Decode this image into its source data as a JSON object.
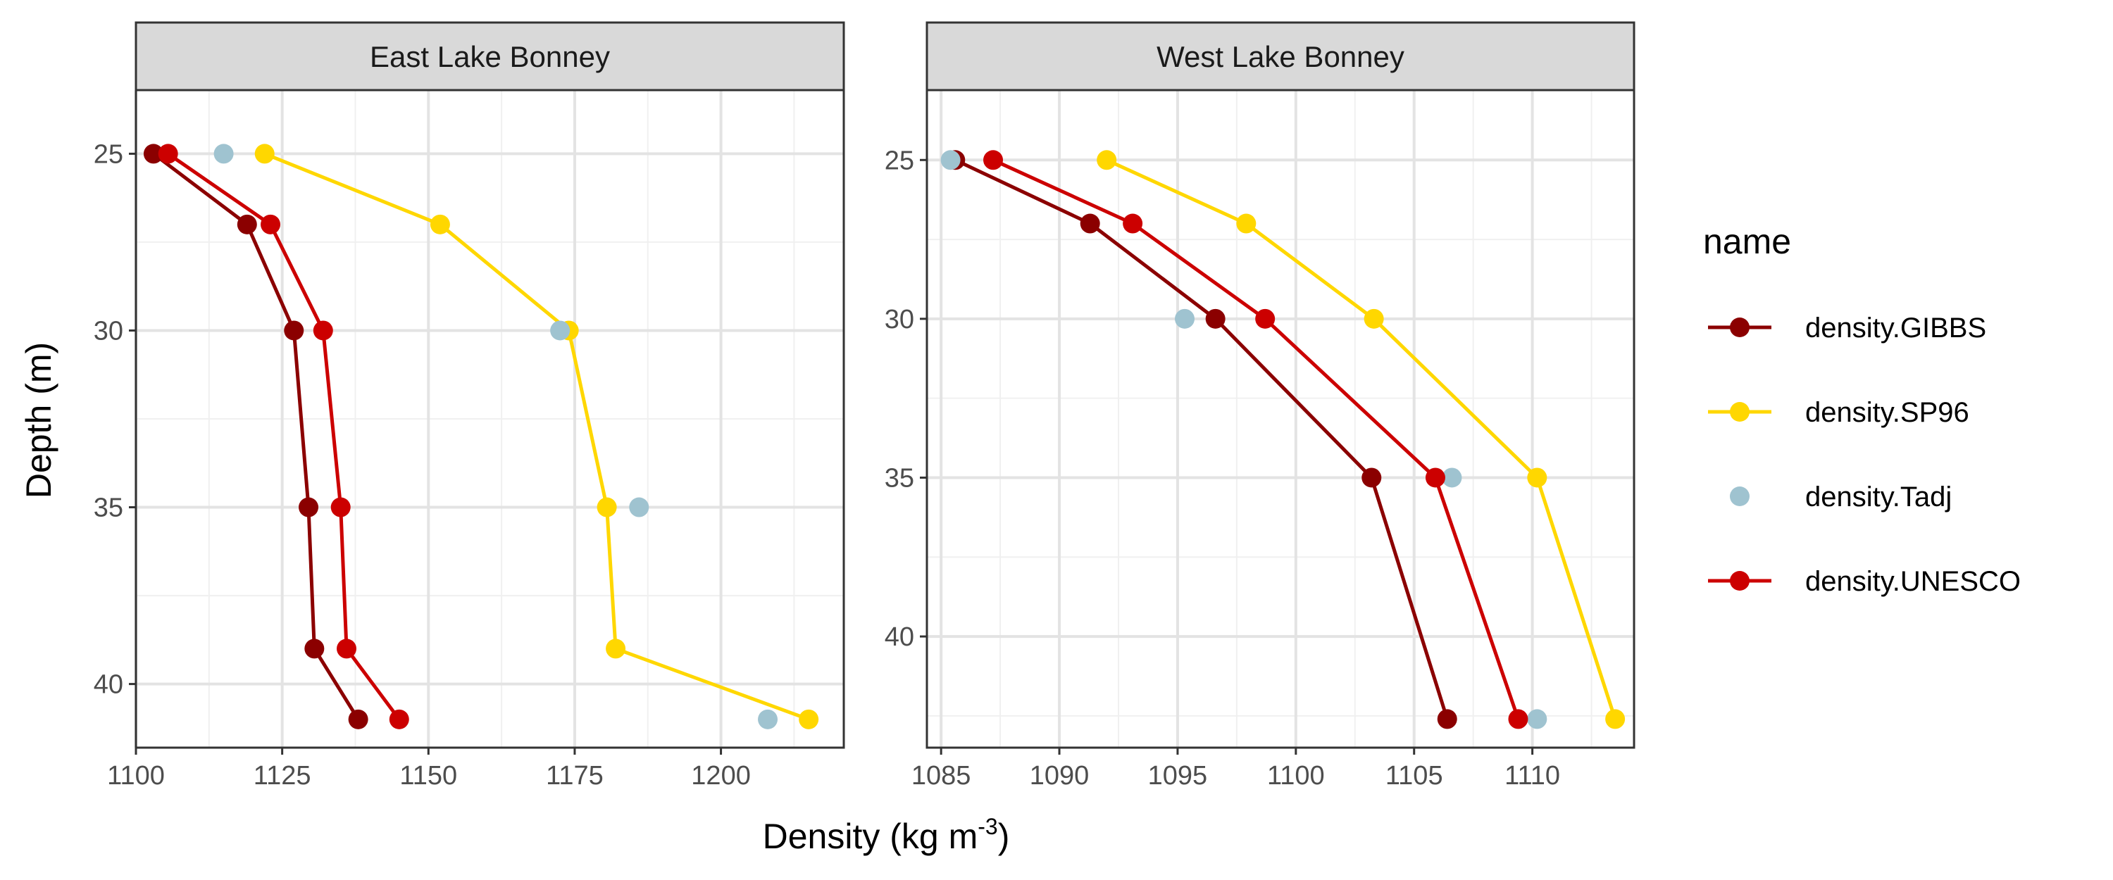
{
  "chart_data": {
    "type": "line",
    "xlabel": "Density (kg m",
    "xlabel_sup": "-3",
    "xlabel_end": ")",
    "ylabel": "Depth (m)",
    "y_reversed": true,
    "grid": true,
    "legend": {
      "title": "name",
      "position": "right",
      "entries": [
        {
          "name": "density.GIBBS",
          "color": "#8B0000",
          "line": true
        },
        {
          "name": "density.SP96",
          "color": "#FFD700",
          "line": true
        },
        {
          "name": "density.Tadj",
          "color": "#9FC3D0",
          "line": false
        },
        {
          "name": "density.UNESCO",
          "color": "#CC0000",
          "line": true
        }
      ]
    },
    "panels": [
      {
        "title": "East Lake Bonney",
        "xlim": [
          1100,
          1221
        ],
        "ylim": [
          23.2,
          41.8
        ],
        "xticks": [
          "1100",
          "1125",
          "1150",
          "1175",
          "1200"
        ],
        "xtick_values": [
          1100,
          1125,
          1150,
          1175,
          1200
        ],
        "xminor": [
          1112.5,
          1137.5,
          1162.5,
          1187.5,
          1212.5
        ],
        "yticks": [
          "25",
          "30",
          "35",
          "40"
        ],
        "ytick_values": [
          25,
          30,
          35,
          40
        ],
        "yminor": [
          27.5,
          32.5,
          37.5
        ],
        "series": [
          {
            "name": "density.GIBBS",
            "line": true,
            "points": [
              [
                1103,
                25
              ],
              [
                1119,
                27
              ],
              [
                1127,
                30
              ],
              [
                1129.5,
                35
              ],
              [
                1130.5,
                39
              ],
              [
                1138,
                41
              ]
            ]
          },
          {
            "name": "density.SP96",
            "line": true,
            "points": [
              [
                1122,
                25
              ],
              [
                1152,
                27
              ],
              [
                1174,
                30
              ],
              [
                1180.5,
                35
              ],
              [
                1182,
                39
              ],
              [
                1215,
                41
              ]
            ]
          },
          {
            "name": "density.Tadj",
            "line": false,
            "points": [
              [
                1115,
                25
              ],
              [
                1172.5,
                30
              ],
              [
                1186,
                35
              ],
              [
                1208,
                41
              ]
            ]
          },
          {
            "name": "density.UNESCO",
            "line": true,
            "points": [
              [
                1105.5,
                25
              ],
              [
                1123,
                27
              ],
              [
                1132,
                30
              ],
              [
                1135,
                35
              ],
              [
                1136,
                39
              ],
              [
                1145,
                41
              ]
            ]
          }
        ]
      },
      {
        "title": "West Lake Bonney",
        "xlim": [
          1084.4,
          1114.3
        ],
        "ylim": [
          22.8,
          43.5
        ],
        "xticks": [
          "1085",
          "1090",
          "1095",
          "1100",
          "1105",
          "1110"
        ],
        "xtick_values": [
          1085,
          1090,
          1095,
          1100,
          1105,
          1110
        ],
        "xminor": [
          1087.5,
          1092.5,
          1097.5,
          1102.5,
          1107.5,
          1112.5
        ],
        "yticks": [
          "25",
          "30",
          "35",
          "40"
        ],
        "ytick_values": [
          25,
          30,
          35,
          40
        ],
        "yminor": [
          27.5,
          32.5,
          37.5,
          42.5
        ],
        "series": [
          {
            "name": "density.GIBBS",
            "line": true,
            "points": [
              [
                1085.6,
                25
              ],
              [
                1091.3,
                27
              ],
              [
                1096.6,
                30
              ],
              [
                1103.2,
                35
              ],
              [
                1106.4,
                42.6
              ]
            ]
          },
          {
            "name": "density.SP96",
            "line": true,
            "points": [
              [
                1092,
                25
              ],
              [
                1097.9,
                27
              ],
              [
                1103.3,
                30
              ],
              [
                1110.2,
                35
              ],
              [
                1113.5,
                42.6
              ]
            ]
          },
          {
            "name": "density.Tadj",
            "line": false,
            "points": [
              [
                1085.4,
                25
              ],
              [
                1095.3,
                30
              ],
              [
                1106.6,
                35
              ],
              [
                1110.2,
                42.6
              ]
            ]
          },
          {
            "name": "density.UNESCO",
            "line": true,
            "points": [
              [
                1087.2,
                25
              ],
              [
                1093.1,
                27
              ],
              [
                1098.7,
                30
              ],
              [
                1105.9,
                35
              ],
              [
                1109.4,
                42.6
              ]
            ]
          }
        ]
      }
    ]
  }
}
